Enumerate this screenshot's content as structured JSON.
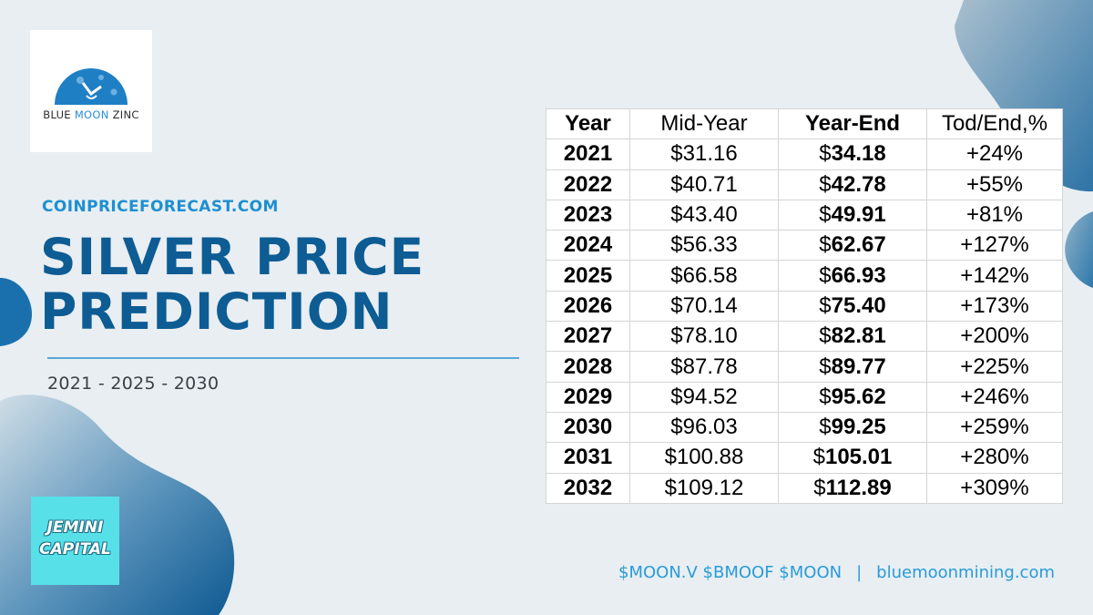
{
  "logo": {
    "brand_part1": "BLUE",
    "brand_part2": "MOON",
    "brand_part3": "ZINC"
  },
  "header": {
    "site": "COINPRICEFORECAST.COM",
    "title_line1": "SILVER PRICE",
    "title_line2": "PREDICTION",
    "years": "2021 - 2025 - 2030"
  },
  "badge": {
    "line1": "JEMINI",
    "line2": "CAPITAL"
  },
  "table": {
    "headers": [
      "Year",
      "Mid-Year",
      "Year-End",
      "Tod/End,%"
    ],
    "rows": [
      {
        "year": "2021",
        "mid": "$31.16",
        "end_prefix": "$",
        "end_value": "34.18",
        "pct": "+24%"
      },
      {
        "year": "2022",
        "mid": "$40.71",
        "end_prefix": "$",
        "end_value": "42.78",
        "pct": "+55%"
      },
      {
        "year": "2023",
        "mid": "$43.40",
        "end_prefix": "$",
        "end_value": "49.91",
        "pct": "+81%"
      },
      {
        "year": "2024",
        "mid": "$56.33",
        "end_prefix": "$",
        "end_value": "62.67",
        "pct": "+127%"
      },
      {
        "year": "2025",
        "mid": "$66.58",
        "end_prefix": "$",
        "end_value": "66.93",
        "pct": "+142%"
      },
      {
        "year": "2026",
        "mid": "$70.14",
        "end_prefix": "$",
        "end_value": "75.40",
        "pct": "+173%"
      },
      {
        "year": "2027",
        "mid": "$78.10",
        "end_prefix": "$",
        "end_value": "82.81",
        "pct": "+200%"
      },
      {
        "year": "2028",
        "mid": "$87.78",
        "end_prefix": "$",
        "end_value": "89.77",
        "pct": "+225%"
      },
      {
        "year": "2029",
        "mid": "$94.52",
        "end_prefix": "$",
        "end_value": "95.62",
        "pct": "+246%"
      },
      {
        "year": "2030",
        "mid": "$96.03",
        "end_prefix": "$",
        "end_value": "99.25",
        "pct": "+259%"
      },
      {
        "year": "2031",
        "mid": "$100.88",
        "end_prefix": "$",
        "end_value": "105.01",
        "pct": "+280%"
      },
      {
        "year": "2032",
        "mid": "$109.12",
        "end_prefix": "$",
        "end_value": "112.89",
        "pct": "+309%"
      }
    ]
  },
  "footer": {
    "tickers": "$MOON.V $BMOOF $MOON",
    "separator": "|",
    "website": "bluemoonmining.com"
  },
  "colors": {
    "background": "#e8eef2",
    "title": "#0d5c93",
    "accent": "#1e8fd0",
    "badge": "#57e0e8"
  }
}
